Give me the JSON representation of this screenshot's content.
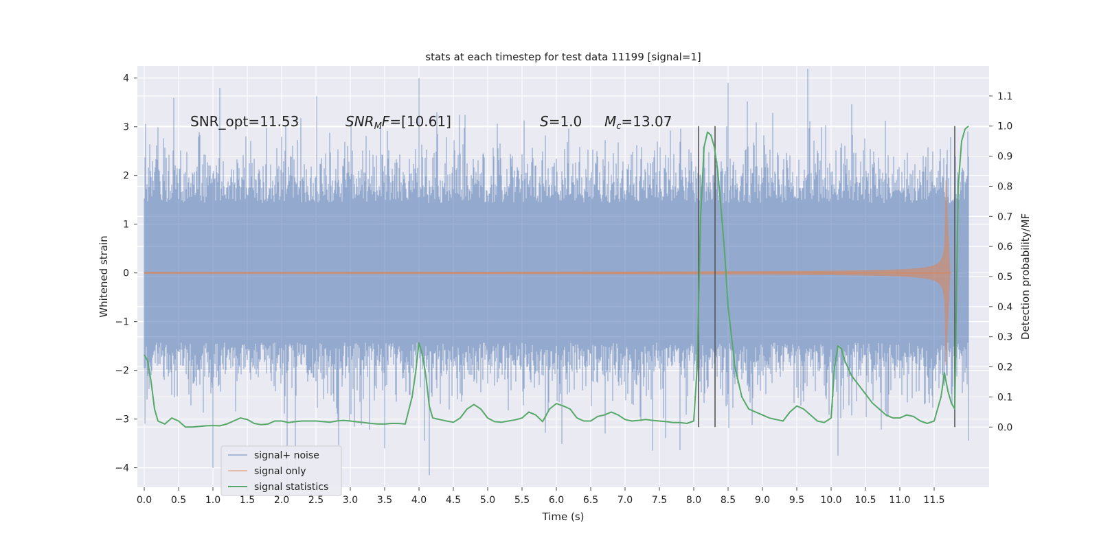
{
  "chart_data": {
    "type": "line",
    "title": "stats at each timestep for test data 11199 [signal=1]",
    "xlabel": "Time (s)",
    "ylabel": "Whitened strain",
    "y2label": "Detection probability/MF",
    "xlim": [
      -0.1,
      12.3
    ],
    "ylim": [
      -4.4,
      4.25
    ],
    "y2lim": [
      -0.2,
      1.2
    ],
    "x_ticks": [
      "0.0",
      "0.5",
      "1.0",
      "1.5",
      "2.0",
      "2.5",
      "3.0",
      "3.5",
      "4.0",
      "4.5",
      "5.0",
      "5.5",
      "6.0",
      "6.5",
      "7.0",
      "7.5",
      "8.0",
      "8.5",
      "9.0",
      "9.5",
      "10.0",
      "10.5",
      "11.0",
      "11.5"
    ],
    "y_ticks": [
      "4",
      "3",
      "2",
      "1",
      "0",
      "−1",
      "−2",
      "−3",
      "−4"
    ],
    "y2_ticks": [
      "1.1",
      "1.0",
      "0.9",
      "0.8",
      "0.7",
      "0.6",
      "0.5",
      "0.4",
      "0.3",
      "0.2",
      "0.1",
      "0.0"
    ],
    "grid": true,
    "legend_position": "lower-left",
    "annotations": [
      {
        "text": "SNR_opt=11.53",
        "x": 0.2,
        "y": 3.1
      },
      {
        "text": "SNRMF=[10.61]",
        "x": 2.6,
        "y": 3.1
      },
      {
        "text": "S=1.0",
        "x": 5.6,
        "y": 3.1
      },
      {
        "text": "Mc=13.07",
        "x": 6.6,
        "y": 3.1
      }
    ],
    "vertical_lines": [
      8.07,
      8.31,
      11.8
    ],
    "series": [
      {
        "name": "signal+ noise",
        "color": "#4c72b0",
        "kind": "noise",
        "x_range": [
          0.0,
          12.0
        ],
        "typical_amplitude": 2.2,
        "peak_values": [
          3.8,
          4.0,
          3.9,
          -3.6,
          -3.75,
          -4.0
        ]
      },
      {
        "name": "signal only",
        "color": "#dd8452",
        "kind": "chirp",
        "x_range": [
          0.0,
          11.75
        ],
        "merger_time": 11.67,
        "peak_amplitude": 1.9
      },
      {
        "name": "signal statistics",
        "color": "#55a868",
        "kind": "line",
        "axis": "y2",
        "x": [
          0.0,
          0.05,
          0.1,
          0.15,
          0.2,
          0.3,
          0.4,
          0.5,
          0.6,
          0.7,
          0.8,
          0.9,
          1.0,
          1.1,
          1.2,
          1.3,
          1.4,
          1.5,
          1.6,
          1.7,
          1.8,
          1.9,
          2.0,
          2.1,
          2.2,
          2.3,
          2.4,
          2.5,
          2.6,
          2.7,
          2.8,
          2.9,
          3.0,
          3.1,
          3.2,
          3.3,
          3.4,
          3.5,
          3.6,
          3.7,
          3.8,
          3.9,
          3.95,
          4.0,
          4.05,
          4.1,
          4.15,
          4.2,
          4.3,
          4.4,
          4.5,
          4.6,
          4.7,
          4.8,
          4.9,
          5.0,
          5.1,
          5.2,
          5.3,
          5.4,
          5.5,
          5.6,
          5.7,
          5.8,
          5.9,
          6.0,
          6.1,
          6.2,
          6.3,
          6.4,
          6.5,
          6.6,
          6.7,
          6.8,
          6.9,
          7.0,
          7.1,
          7.2,
          7.3,
          7.4,
          7.5,
          7.6,
          7.7,
          7.8,
          7.9,
          8.0,
          8.05,
          8.1,
          8.15,
          8.2,
          8.25,
          8.3,
          8.35,
          8.4,
          8.45,
          8.5,
          8.6,
          8.7,
          8.8,
          8.9,
          9.0,
          9.1,
          9.2,
          9.3,
          9.4,
          9.5,
          9.6,
          9.7,
          9.8,
          9.9,
          10.0,
          10.05,
          10.1,
          10.15,
          10.2,
          10.3,
          10.4,
          10.5,
          10.6,
          10.7,
          10.8,
          10.9,
          11.0,
          11.1,
          11.2,
          11.3,
          11.4,
          11.5,
          11.6,
          11.65,
          11.7,
          11.75,
          11.8,
          11.85,
          11.9,
          11.95,
          12.0
        ],
        "y": [
          0.24,
          0.22,
          0.15,
          0.06,
          0.02,
          0.01,
          0.03,
          0.02,
          0.0,
          0.0,
          0.002,
          0.004,
          0.005,
          0.004,
          0.01,
          0.02,
          0.03,
          0.025,
          0.012,
          0.008,
          0.01,
          0.02,
          0.02,
          0.015,
          0.018,
          0.02,
          0.02,
          0.02,
          0.018,
          0.016,
          0.02,
          0.022,
          0.02,
          0.017,
          0.015,
          0.012,
          0.01,
          0.01,
          0.012,
          0.012,
          0.01,
          0.1,
          0.18,
          0.28,
          0.24,
          0.17,
          0.07,
          0.03,
          0.025,
          0.02,
          0.016,
          0.03,
          0.06,
          0.075,
          0.06,
          0.03,
          0.018,
          0.016,
          0.02,
          0.024,
          0.03,
          0.05,
          0.04,
          0.018,
          0.06,
          0.078,
          0.07,
          0.06,
          0.03,
          0.02,
          0.02,
          0.035,
          0.04,
          0.05,
          0.04,
          0.025,
          0.02,
          0.022,
          0.025,
          0.022,
          0.02,
          0.018,
          0.015,
          0.015,
          0.012,
          0.02,
          0.2,
          0.7,
          0.93,
          0.98,
          0.97,
          0.93,
          0.85,
          0.72,
          0.58,
          0.4,
          0.2,
          0.1,
          0.06,
          0.05,
          0.04,
          0.03,
          0.025,
          0.02,
          0.05,
          0.07,
          0.06,
          0.04,
          0.02,
          0.015,
          0.03,
          0.2,
          0.27,
          0.26,
          0.22,
          0.17,
          0.14,
          0.11,
          0.08,
          0.06,
          0.04,
          0.03,
          0.03,
          0.04,
          0.035,
          0.02,
          0.012,
          0.02,
          0.1,
          0.18,
          0.12,
          0.08,
          0.06,
          0.8,
          0.95,
          0.99,
          1.0
        ]
      }
    ]
  }
}
